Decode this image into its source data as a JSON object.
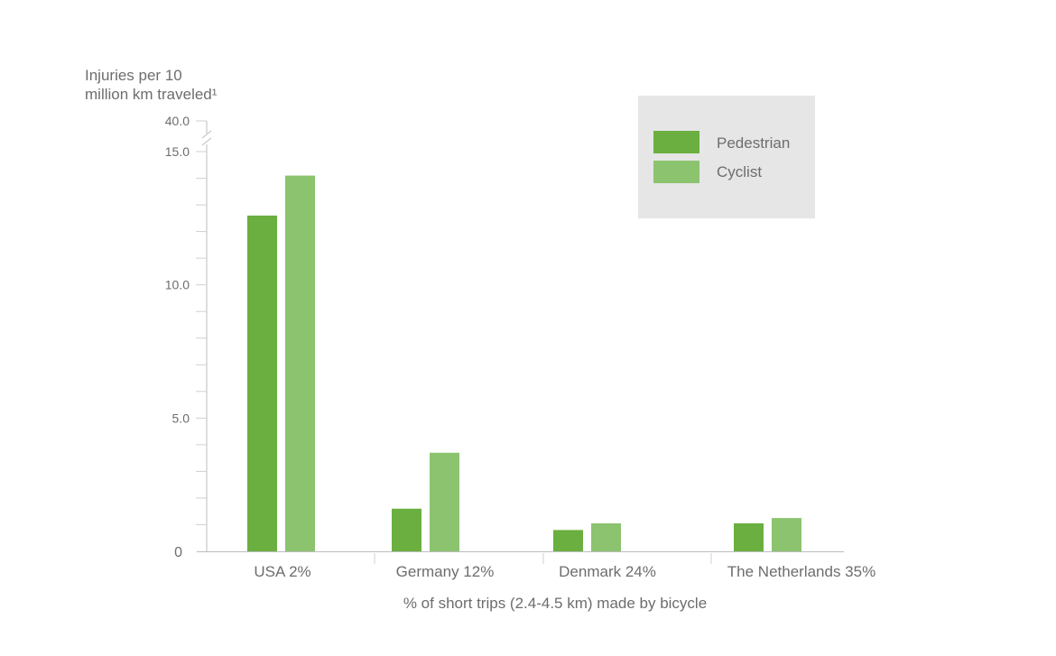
{
  "colors": {
    "pedestrian": "#6aaf3f",
    "cyclist": "#8cc36f",
    "axis": "#bdbdbd",
    "text": "#6d6d6d",
    "legend_bg": "#e6e6e6"
  },
  "chart_data": {
    "type": "bar",
    "title": "",
    "ylabel_lines": [
      "Injuries per 10",
      "million km traveled¹"
    ],
    "xlabel": "% of short trips (2.4-4.5 km) made by bicycle",
    "categories": [
      "USA 2%",
      "Germany 12%",
      "Denmark 24%",
      "The Netherlands 35%"
    ],
    "series": [
      {
        "name": "Pedestrian",
        "values": [
          12.6,
          1.6,
          0.8,
          1.05
        ]
      },
      {
        "name": "Cyclist",
        "values": [
          14.1,
          3.7,
          1.05,
          1.25
        ]
      }
    ],
    "yticks": [
      "0",
      "5.0",
      "10.0",
      "15.0",
      "40.0"
    ],
    "ylim": [
      0,
      15
    ],
    "axis_break": {
      "from": 15.0,
      "to": 40.0
    },
    "legend_position": "top-right",
    "grid": false
  }
}
